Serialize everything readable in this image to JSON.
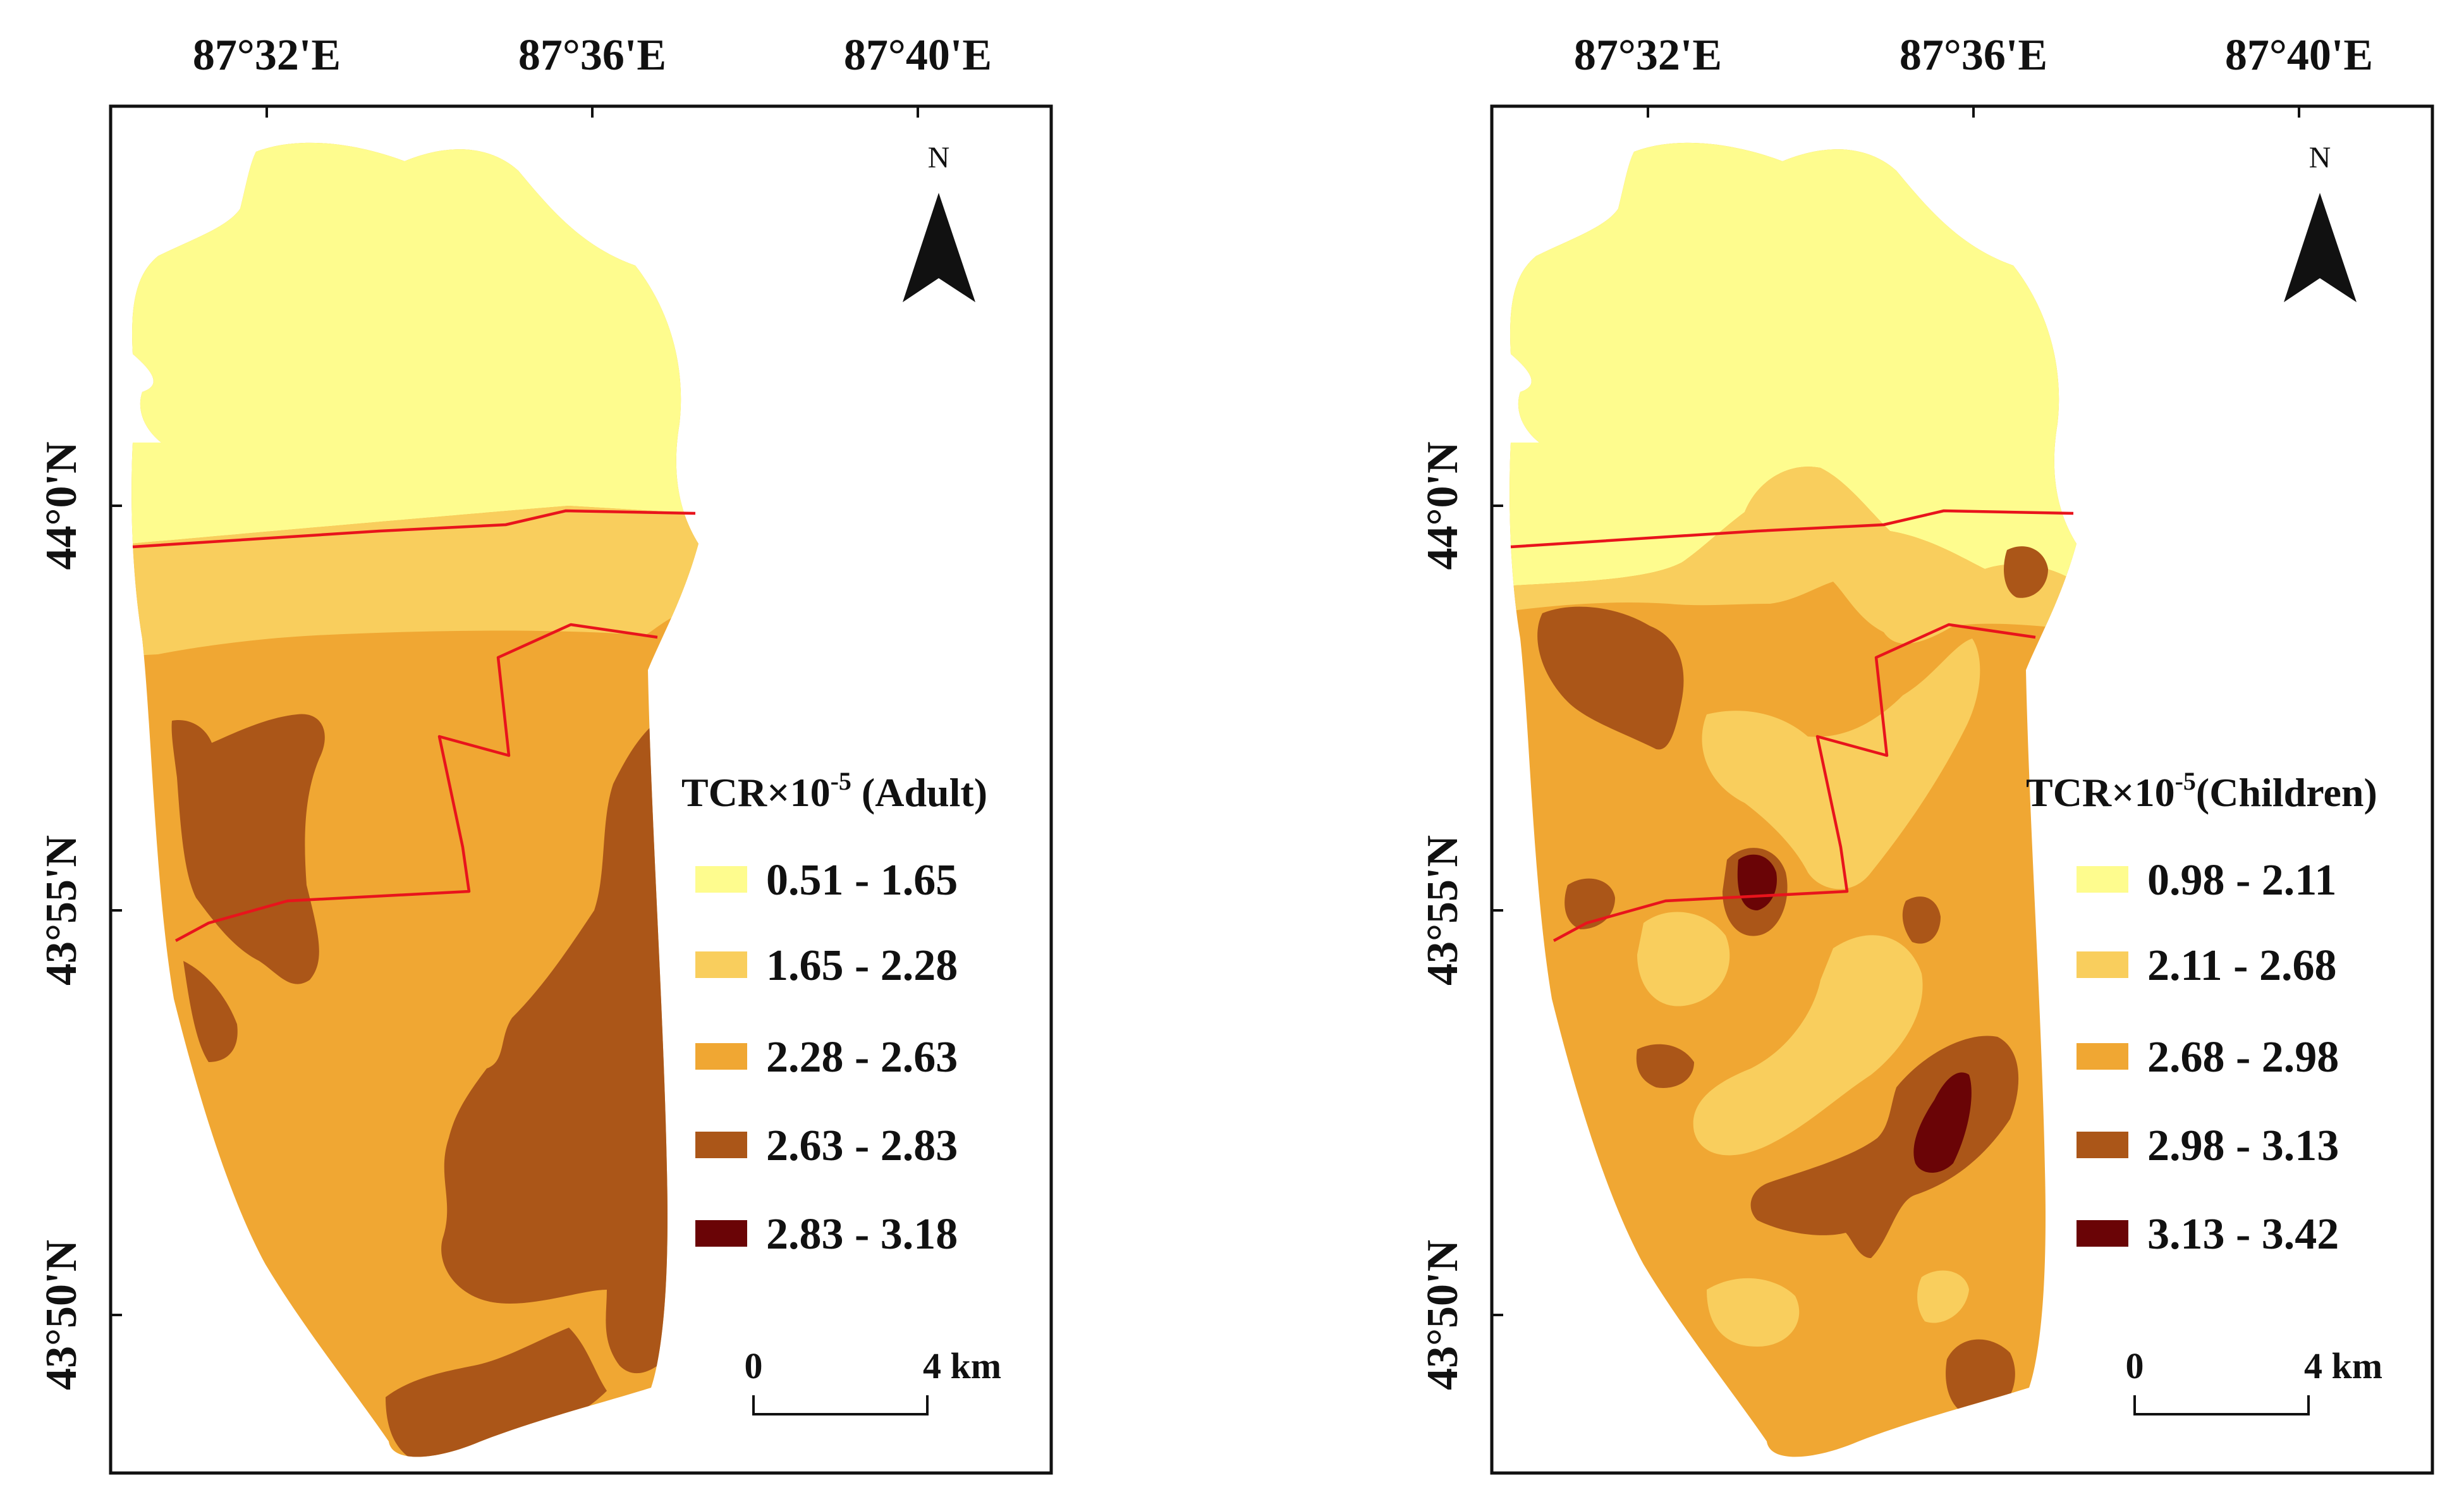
{
  "colors": {
    "class1": "#FEFC8E",
    "class2": "#F9CE5D",
    "class3": "#F0A733",
    "class4": "#AB5618",
    "class5": "#6A0406",
    "boundary": "#E8141C"
  },
  "panels": [
    {
      "id": "adult",
      "legend_title": "TCR×10",
      "legend_exp": "-5",
      "legend_suffix": " (Adult)",
      "classes": [
        "0.51 - 1.65",
        "1.65 - 2.28",
        "2.28 - 2.63",
        "2.63 - 2.83",
        "2.83 - 3.18"
      ]
    },
    {
      "id": "children",
      "legend_title": "TCR×10",
      "legend_exp": "-5",
      "legend_suffix": "(Children)",
      "classes": [
        "0.98 - 2.11",
        "2.11 - 2.68",
        "2.68 - 2.98",
        "2.98 - 3.13",
        "3.13 - 3.42"
      ]
    }
  ],
  "longitude_labels": [
    "87°32'E",
    "87°36'E",
    "87°40'E"
  ],
  "latitude_labels": [
    "44°0'N",
    "43°55'N",
    "43°50'N"
  ],
  "north_arrow": {
    "label": "N"
  },
  "scale_bar": {
    "start": "0",
    "end": "4 km"
  }
}
